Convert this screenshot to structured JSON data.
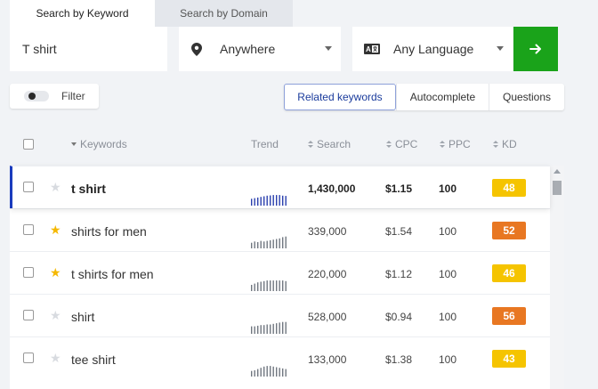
{
  "tabs": [
    {
      "label": "Search by Keyword",
      "active": true
    },
    {
      "label": "Search by Domain",
      "active": false
    }
  ],
  "search": {
    "keyword_value": "T shirt",
    "location": "Anywhere",
    "language": "Any Language",
    "go_icon": "arrow-right-icon"
  },
  "filter": {
    "label": "Filter"
  },
  "views": [
    {
      "label": "Related keywords",
      "active": true
    },
    {
      "label": "Autocomplete",
      "active": false
    },
    {
      "label": "Questions",
      "active": false
    }
  ],
  "table": {
    "headers": {
      "keywords": "Keywords",
      "trend": "Trend",
      "search": "Search",
      "cpc": "CPC",
      "ppc": "PPC",
      "kd": "KD"
    },
    "rows": [
      {
        "keyword": "t shirt",
        "starred": false,
        "search": "1,430,000",
        "cpc": "$1.15",
        "ppc": "100",
        "kd": "48",
        "kd_color": "#f5c400",
        "trend": [
          0.55,
          0.6,
          0.65,
          0.7,
          0.75,
          0.8,
          0.82,
          0.85,
          0.85,
          0.85,
          0.8,
          0.78
        ],
        "selected": true
      },
      {
        "keyword": "shirts for men",
        "starred": true,
        "search": "339,000",
        "cpc": "$1.54",
        "ppc": "100",
        "kd": "52",
        "kd_color": "#e87722",
        "trend": [
          0.45,
          0.55,
          0.5,
          0.6,
          0.55,
          0.6,
          0.65,
          0.7,
          0.75,
          0.8,
          0.9,
          0.95
        ],
        "selected": false
      },
      {
        "keyword": "t shirts for men",
        "starred": true,
        "search": "220,000",
        "cpc": "$1.12",
        "ppc": "100",
        "kd": "46",
        "kd_color": "#f5c400",
        "trend": [
          0.5,
          0.6,
          0.7,
          0.75,
          0.8,
          0.85,
          0.85,
          0.85,
          0.85,
          0.85,
          0.85,
          0.8
        ],
        "selected": false
      },
      {
        "keyword": "shirt",
        "starred": false,
        "search": "528,000",
        "cpc": "$0.94",
        "ppc": "100",
        "kd": "56",
        "kd_color": "#e87722",
        "trend": [
          0.6,
          0.6,
          0.65,
          0.7,
          0.7,
          0.75,
          0.75,
          0.8,
          0.85,
          0.9,
          0.95,
          0.95
        ],
        "selected": false
      },
      {
        "keyword": "tee shirt",
        "starred": false,
        "search": "133,000",
        "cpc": "$1.38",
        "ppc": "100",
        "kd": "43",
        "kd_color": "#f5c400",
        "trend": [
          0.45,
          0.5,
          0.6,
          0.7,
          0.8,
          0.85,
          0.85,
          0.8,
          0.75,
          0.7,
          0.65,
          0.6
        ],
        "selected": false
      }
    ]
  },
  "colors": {
    "accent_blue": "#1a3bbd",
    "go_green": "#1aa31a",
    "star_gold": "#f5b800",
    "star_empty": "#d8dbe0"
  }
}
